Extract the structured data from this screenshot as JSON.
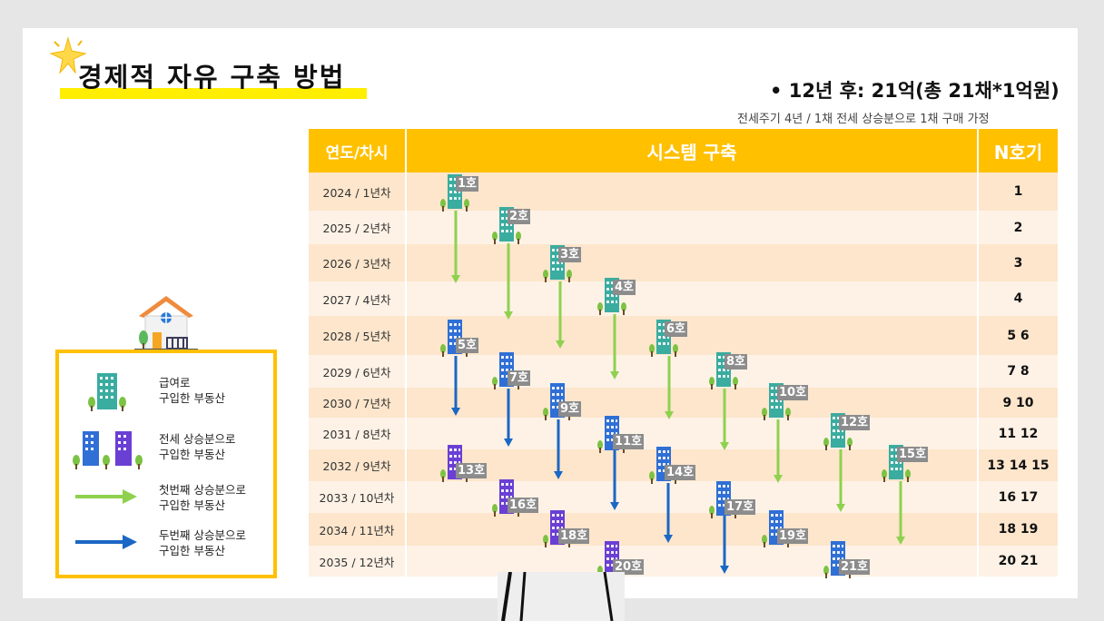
{
  "title": "경제적 자유 구축 방법",
  "summary": "• 12년 후: 21억(총 21채*1억원)",
  "assumption": "전세주기 4년 / 1채 전세 상승분으로 1채 구매 가정",
  "table": {
    "headers": {
      "year": "연도/차시",
      "system": "시스템 구축",
      "n": "N호기"
    },
    "rows": [
      {
        "year": "2024 / 1년차",
        "n": "1"
      },
      {
        "year": "2025 / 2년차",
        "n": "2"
      },
      {
        "year": "2026 / 3년차",
        "n": "3"
      },
      {
        "year": "2027 / 4년차",
        "n": "4"
      },
      {
        "year": "2028 / 5년차",
        "n": "5 6"
      },
      {
        "year": "2029 / 6년차",
        "n": "7 8"
      },
      {
        "year": "2030 / 7년차",
        "n": "9 10"
      },
      {
        "year": "2031 / 8년차",
        "n": "11 12"
      },
      {
        "year": "2032 / 9년차",
        "n": "13 14 15"
      },
      {
        "year": "2033 / 10년차",
        "n": "16 17"
      },
      {
        "year": "2034 / 11년차",
        "n": "18 19"
      },
      {
        "year": "2035 / 12년차",
        "n": "20   21"
      }
    ]
  },
  "units": [
    {
      "label": "1호",
      "type": "salary",
      "row": 1
    },
    {
      "label": "2호",
      "type": "salary",
      "row": 2
    },
    {
      "label": "3호",
      "type": "salary",
      "row": 3
    },
    {
      "label": "4호",
      "type": "salary",
      "row": 4
    },
    {
      "label": "5호",
      "type": "jeonse",
      "row": 5
    },
    {
      "label": "6호",
      "type": "salary",
      "row": 5
    },
    {
      "label": "7호",
      "type": "jeonse",
      "row": 6
    },
    {
      "label": "8호",
      "type": "salary",
      "row": 6
    },
    {
      "label": "9호",
      "type": "jeonse",
      "row": 7
    },
    {
      "label": "10호",
      "type": "salary",
      "row": 7
    },
    {
      "label": "11호",
      "type": "jeonse",
      "row": 8
    },
    {
      "label": "12호",
      "type": "salary",
      "row": 8
    },
    {
      "label": "13호",
      "type": "jeonse2",
      "row": 9
    },
    {
      "label": "14호",
      "type": "jeonse",
      "row": 9
    },
    {
      "label": "15호",
      "type": "salary",
      "row": 9
    },
    {
      "label": "16호",
      "type": "jeonse2",
      "row": 10
    },
    {
      "label": "17호",
      "type": "jeonse",
      "row": 10
    },
    {
      "label": "18호",
      "type": "jeonse2",
      "row": 11
    },
    {
      "label": "19호",
      "type": "jeonse",
      "row": 11
    },
    {
      "label": "20호",
      "type": "jeonse2",
      "row": 12
    },
    {
      "label": "21호",
      "type": "jeonse",
      "row": 12
    }
  ],
  "legend": {
    "items": [
      {
        "label": "급여로\n구입한 부동산",
        "icon": "teal-building-icon"
      },
      {
        "label": "전세 상승분으로\n구입한 부동산",
        "icon": "blue-purple-building-icon"
      },
      {
        "label": "첫번째 상승분으로\n구입한 부동산",
        "icon": "green-arrow-icon"
      },
      {
        "label": "두번째 상승분으로\n구입한 부동산",
        "icon": "blue-arrow-icon"
      }
    ]
  },
  "colors": {
    "header": "#ffc000",
    "row_dark": "#fde6cc",
    "row_light": "#fef2e6",
    "title_highlight": "#ffee00",
    "teal_building": "#3aaca0",
    "blue_building": "#2f6fd6",
    "purple_building": "#6a3fd4",
    "green_arrow": "#8fd14f",
    "blue_arrow": "#1b67c4",
    "label_bg": "#8c8c8c"
  }
}
